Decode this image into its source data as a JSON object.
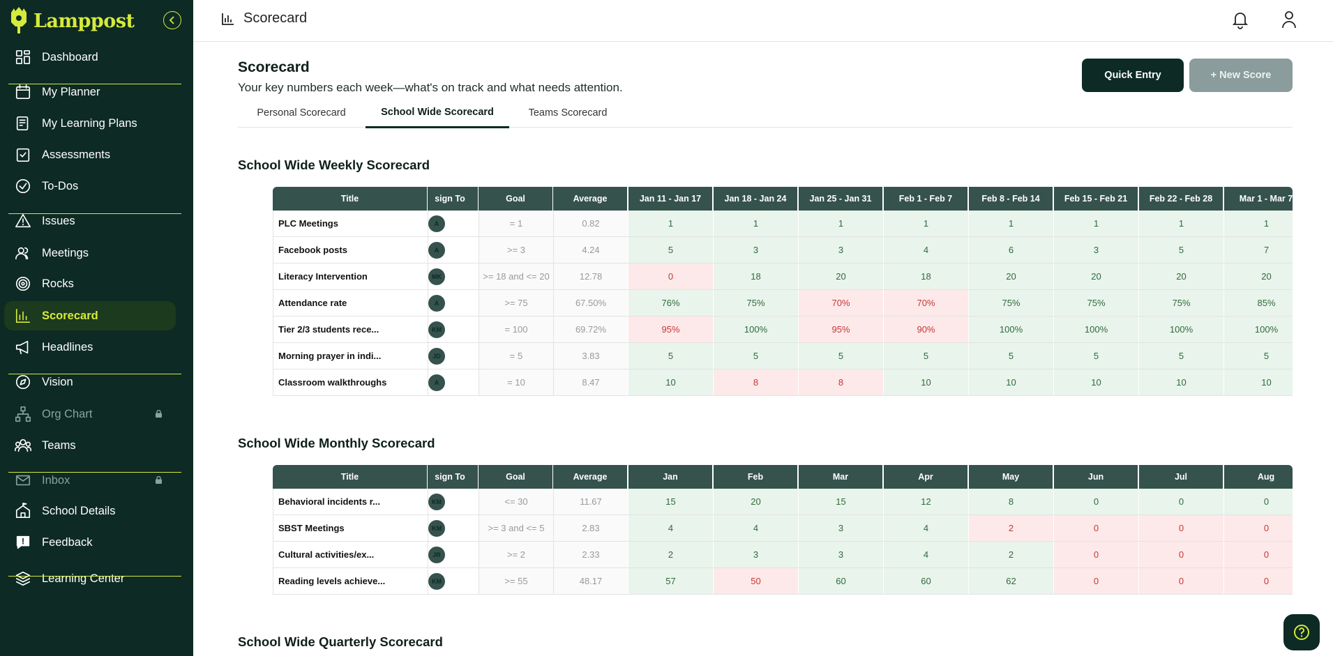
{
  "brand": {
    "name": "Lamppost",
    "accent": "#d6ea3c",
    "sidebar_bg": "#0d2a24"
  },
  "sidebar": {
    "items": [
      {
        "label": "Dashboard",
        "icon": "dashboard-icon"
      },
      {
        "label": "My Planner",
        "icon": "calendar-icon"
      },
      {
        "label": "My Learning Plans",
        "icon": "learning-plan-icon"
      },
      {
        "label": "Assessments",
        "icon": "clipboard-check-icon"
      },
      {
        "label": "To-Dos",
        "icon": "check-circle-icon"
      },
      {
        "label": "Issues",
        "icon": "warning-icon"
      },
      {
        "label": "Meetings",
        "icon": "people-icon"
      },
      {
        "label": "Rocks",
        "icon": "target-icon"
      },
      {
        "label": "Scorecard",
        "icon": "bar-chart-icon",
        "active": true
      },
      {
        "label": "Headlines",
        "icon": "megaphone-icon"
      },
      {
        "label": "Vision",
        "icon": "compass-icon"
      },
      {
        "label": "Org Chart",
        "icon": "org-chart-icon",
        "locked": true
      },
      {
        "label": "Teams",
        "icon": "team-icon"
      },
      {
        "label": "Inbox",
        "icon": "mail-icon",
        "locked": true
      },
      {
        "label": "School Details",
        "icon": "school-icon"
      },
      {
        "label": "Feedback",
        "icon": "feedback-icon"
      },
      {
        "label": "Learning Center",
        "icon": "layers-icon"
      }
    ]
  },
  "topbar": {
    "title": "Scorecard"
  },
  "page": {
    "title": "Scorecard",
    "subtitle": "Your key numbers each week—what's on track and what needs attention.",
    "quick_entry": "Quick Entry",
    "new_score": "+ New Score",
    "tabs": [
      "Personal Scorecard",
      "School Wide Scorecard",
      "Teams Scorecard"
    ],
    "active_tab": 1
  },
  "weekly": {
    "title": "School Wide Weekly Scorecard",
    "headers": {
      "title": "Title",
      "assign": "sign To",
      "goal": "Goal",
      "average": "Average"
    },
    "periods": [
      "Jan 11 - Jan 17",
      "Jan 18 - Jan 24",
      "Jan 25 - Jan 31",
      "Feb 1 - Feb 7",
      "Feb 8 - Feb 14",
      "Feb 15 - Feb 21",
      "Feb 22 - Feb 28",
      "Mar 1 - Mar 7"
    ],
    "rows": [
      {
        "title": "PLC Meetings",
        "assignee": "A",
        "goal": "= 1",
        "average": "0.82",
        "values": [
          "1",
          "1",
          "1",
          "1",
          "1",
          "1",
          "1",
          "1"
        ],
        "status": [
          "g",
          "g",
          "g",
          "g",
          "g",
          "g",
          "g",
          "g"
        ]
      },
      {
        "title": "Facebook posts",
        "assignee": "A",
        "goal": ">= 3",
        "average": "4.24",
        "values": [
          "5",
          "3",
          "3",
          "4",
          "6",
          "3",
          "5",
          "7"
        ],
        "status": [
          "g",
          "g",
          "g",
          "g",
          "g",
          "g",
          "g",
          "g"
        ]
      },
      {
        "title": "Literacy Intervention",
        "assignee": "MK",
        "goal": ">= 18 and <= 20",
        "average": "12.78",
        "values": [
          "0",
          "18",
          "20",
          "18",
          "20",
          "20",
          "20",
          "20"
        ],
        "status": [
          "r",
          "g",
          "g",
          "g",
          "g",
          "g",
          "g",
          "g"
        ]
      },
      {
        "title": "Attendance rate",
        "assignee": "A",
        "goal": ">= 75",
        "average": "67.50%",
        "values": [
          "76%",
          "75%",
          "70%",
          "70%",
          "75%",
          "75%",
          "75%",
          "85%"
        ],
        "status": [
          "g",
          "g",
          "r",
          "r",
          "g",
          "g",
          "g",
          "g"
        ]
      },
      {
        "title": "Tier 2/3 students rece...",
        "assignee": "KM",
        "goal": "= 100",
        "average": "69.72%",
        "values": [
          "95%",
          "100%",
          "95%",
          "90%",
          "100%",
          "100%",
          "100%",
          "100%"
        ],
        "status": [
          "r",
          "g",
          "r",
          "r",
          "g",
          "g",
          "g",
          "g"
        ]
      },
      {
        "title": "Morning prayer in indi...",
        "assignee": "JD",
        "goal": "= 5",
        "average": "3.83",
        "values": [
          "5",
          "5",
          "5",
          "5",
          "5",
          "5",
          "5",
          "5"
        ],
        "status": [
          "g",
          "g",
          "g",
          "g",
          "g",
          "g",
          "g",
          "g"
        ]
      },
      {
        "title": "Classroom walkthroughs",
        "assignee": "A",
        "goal": "= 10",
        "average": "8.47",
        "values": [
          "10",
          "8",
          "8",
          "10",
          "10",
          "10",
          "10",
          "10"
        ],
        "status": [
          "g",
          "r",
          "r",
          "g",
          "g",
          "g",
          "g",
          "g"
        ]
      }
    ]
  },
  "monthly": {
    "title": "School Wide Monthly Scorecard",
    "headers": {
      "title": "Title",
      "assign": "sign To",
      "goal": "Goal",
      "average": "Average"
    },
    "periods": [
      "Jan",
      "Feb",
      "Mar",
      "Apr",
      "May",
      "Jun",
      "Jul",
      "Aug"
    ],
    "rows": [
      {
        "title": "Behavioral incidents r...",
        "assignee": "KM",
        "goal": "<= 30",
        "average": "11.67",
        "values": [
          "15",
          "20",
          "15",
          "12",
          "8",
          "0",
          "0",
          "0"
        ],
        "status": [
          "g",
          "g",
          "g",
          "g",
          "g",
          "g",
          "g",
          "g"
        ]
      },
      {
        "title": "SBST Meetings",
        "assignee": "KM",
        "goal": ">= 3 and <= 5",
        "average": "2.83",
        "values": [
          "4",
          "4",
          "3",
          "4",
          "2",
          "0",
          "0",
          "0"
        ],
        "status": [
          "g",
          "g",
          "g",
          "g",
          "r",
          "r",
          "r",
          "r"
        ]
      },
      {
        "title": "Cultural activities/ex...",
        "assignee": "JR",
        "goal": ">= 2",
        "average": "2.33",
        "values": [
          "2",
          "3",
          "3",
          "4",
          "2",
          "0",
          "0",
          "0"
        ],
        "status": [
          "g",
          "g",
          "g",
          "g",
          "g",
          "r",
          "r",
          "r"
        ]
      },
      {
        "title": "Reading levels achieve...",
        "assignee": "KM",
        "goal": ">= 55",
        "average": "48.17",
        "values": [
          "57",
          "50",
          "60",
          "60",
          "62",
          "0",
          "0",
          "0"
        ],
        "status": [
          "g",
          "r",
          "g",
          "g",
          "g",
          "r",
          "r",
          "r"
        ]
      }
    ]
  },
  "quarterly": {
    "title": "School Wide Quarterly Scorecard"
  }
}
